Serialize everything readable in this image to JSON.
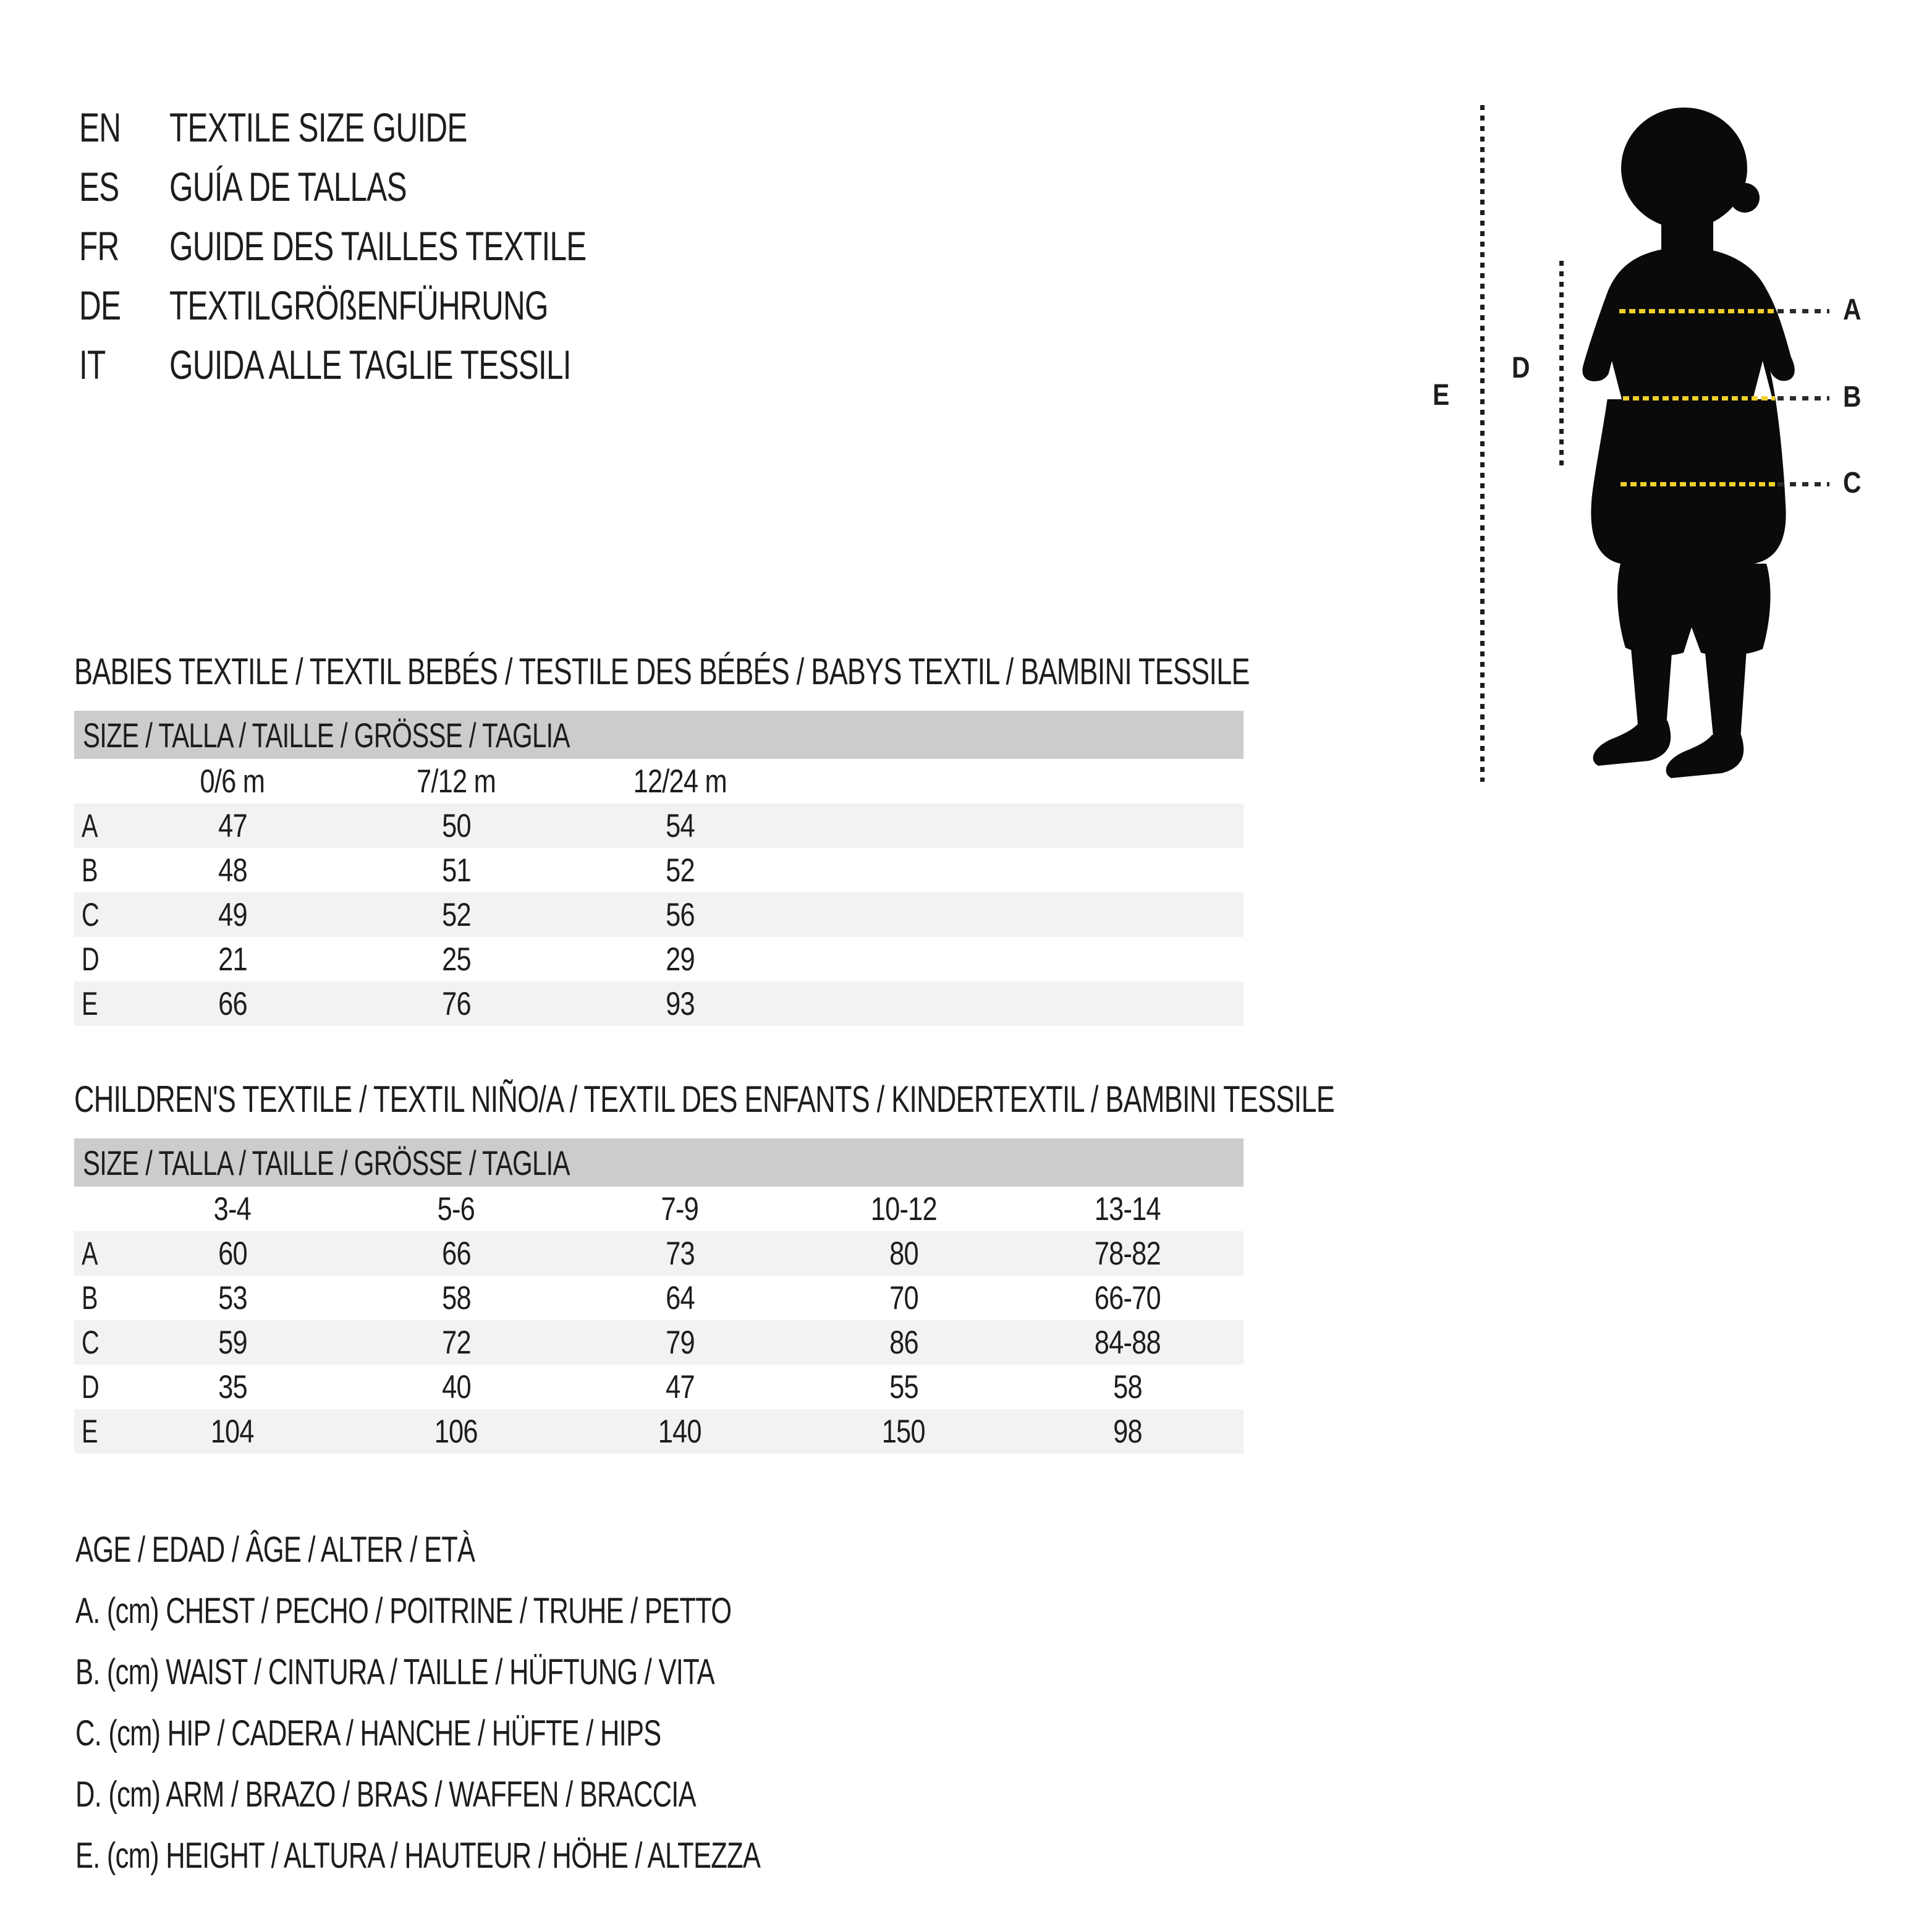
{
  "title_block": {
    "languages": [
      {
        "code": "EN",
        "title": "TEXTILE SIZE GUIDE"
      },
      {
        "code": "ES",
        "title": "GUÍA DE TALLAS"
      },
      {
        "code": "FR",
        "title": "GUIDE DES TAILLES TEXTILE"
      },
      {
        "code": "DE",
        "title": "TEXTILGRÖßENFÜHRUNG"
      },
      {
        "code": "IT",
        "title": "GUIDA ALLE TAGLIE TESSILI"
      }
    ]
  },
  "diagram": {
    "figure": "child-silhouette",
    "measure_labels": {
      "A": "A",
      "B": "B",
      "C": "C",
      "D": "D",
      "E": "E"
    }
  },
  "sections": [
    {
      "heading": "BABIES TEXTILE / TEXTIL BEBÉS / TESTILE DES BÉBÉS / BABYS TEXTIL / BAMBINI TESSILE",
      "size_header": "SIZE / TALLA / TAILLE / GRÖSSE / TAGLIA",
      "columns": [
        "0/6 m",
        "7/12 m",
        "12/24 m"
      ],
      "rows": [
        {
          "label": "A",
          "values": [
            "47",
            "50",
            "54"
          ]
        },
        {
          "label": "B",
          "values": [
            "48",
            "51",
            "52"
          ]
        },
        {
          "label": "C",
          "values": [
            "49",
            "52",
            "56"
          ]
        },
        {
          "label": "D",
          "values": [
            "21",
            "25",
            "29"
          ]
        },
        {
          "label": "E",
          "values": [
            "66",
            "76",
            "93"
          ]
        }
      ]
    },
    {
      "heading": "CHILDREN'S TEXTILE / TEXTIL NIÑO/A / TEXTIL DES ENFANTS / KINDERTEXTIL / BAMBINI TESSILE",
      "size_header": "SIZE / TALLA / TAILLE / GRÖSSE / TAGLIA",
      "columns": [
        "3-4",
        "5-6",
        "7-9",
        "10-12",
        "13-14"
      ],
      "rows": [
        {
          "label": "A",
          "values": [
            "60",
            "66",
            "73",
            "80",
            "78-82"
          ]
        },
        {
          "label": "B",
          "values": [
            "53",
            "58",
            "64",
            "70",
            "66-70"
          ]
        },
        {
          "label": "C",
          "values": [
            "59",
            "72",
            "79",
            "86",
            "84-88"
          ]
        },
        {
          "label": "D",
          "values": [
            "35",
            "40",
            "47",
            "55",
            "58"
          ]
        },
        {
          "label": "E",
          "values": [
            "104",
            "106",
            "140",
            "150",
            "98"
          ]
        }
      ]
    }
  ],
  "legend": {
    "title": "AGE / EDAD / ÂGE / ALTER / ETÀ",
    "items": [
      "A. (cm) CHEST / PECHO / POITRINE / TRUHE / PETTO",
      "B. (cm) WAIST / CINTURA / TAILLE / HÜFTUNG / VITA",
      "C. (cm) HIP / CADERA / HANCHE / HÜFTE / HIPS",
      "D. (cm) ARM / BRAZO / BRAS / WAFFEN / BRACCIA",
      "E. (cm) HEIGHT / ALTURA / HAUTEUR / HÖHE / ALTEZZA"
    ]
  },
  "colors": {
    "text": "#1d1d1b",
    "header_band": "#cccccc",
    "row_stripe": "#f2f2f2",
    "accent_yellow": "#f0d02a",
    "silhouette": "#0a0a0a"
  }
}
